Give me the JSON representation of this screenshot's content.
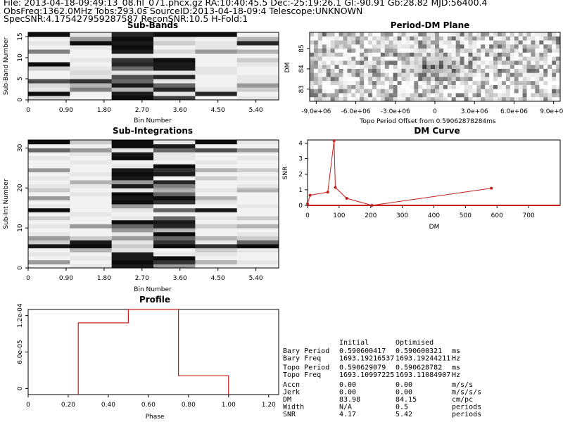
{
  "header": {
    "line1": "File: 2013-04-18-09:49:13_08.fil_071.phcx.gz   RA:10:40:45.5   Dec:-25:19:26.1   Gl:-90.91   Gb:28.82   MJD:56400.4",
    "line2": "ObsFreq:1362.0MHz    Tobs:293.0s    SourceID:2013-04-18-09:4    Telescope:UNKNOWN",
    "line3": "SpecSNR:4.175427959287587    ReconSNR:10.5    H-Fold:1"
  },
  "colors": {
    "curve": "#c41e1e",
    "axes": "#000000"
  },
  "chart_data": [
    {
      "id": "subbands",
      "type": "heatmap",
      "title": "Sub-Bands",
      "xlabel": "Bin Number",
      "ylabel": "Sub-Band Number",
      "xlim": [
        0,
        6
      ],
      "ylim": [
        0,
        16
      ],
      "xticks": [
        "0",
        "0.90",
        "1.80",
        "2.70",
        "3.60",
        "4.50",
        "5.40"
      ],
      "yticks": [
        "0",
        "5",
        "10",
        "15"
      ],
      "values": [
        [
          0.15,
          0.05,
          0.95,
          0.75,
          0.05,
          0.1
        ],
        [
          0.95,
          0.05,
          0.9,
          0.1,
          0.85,
          0.05
        ],
        [
          0.1,
          0.5,
          0.3,
          0.85,
          0.1,
          0.2
        ],
        [
          0.15,
          0.3,
          0.9,
          0.6,
          0.05,
          0.4
        ],
        [
          0.7,
          0.8,
          0.6,
          0.1,
          0.05,
          0.1
        ],
        [
          0.05,
          0.1,
          0.7,
          0.85,
          0.05,
          0.1
        ],
        [
          0.05,
          0.15,
          0.1,
          0.1,
          0.1,
          0.05
        ],
        [
          0.2,
          0.1,
          0.6,
          0.9,
          0.1,
          0.05
        ],
        [
          0.95,
          0.05,
          0.85,
          0.9,
          0.05,
          0.1
        ],
        [
          0.05,
          0.1,
          0.8,
          0.95,
          0.05,
          0.2
        ],
        [
          0.05,
          0.05,
          0.1,
          0.05,
          0.05,
          0.05
        ],
        [
          0.5,
          0.05,
          0.9,
          0.15,
          0.4,
          0.3
        ],
        [
          0.05,
          0.1,
          0.95,
          0.05,
          0.1,
          0.05
        ],
        [
          0.1,
          0.95,
          0.9,
          0.2,
          0.1,
          0.85
        ],
        [
          0.05,
          0.4,
          0.95,
          0.1,
          0.05,
          0.3
        ],
        [
          0.95,
          0.1,
          0.85,
          0.95,
          0.95,
          0.05
        ]
      ]
    },
    {
      "id": "subints",
      "type": "heatmap",
      "title": "Sub-Integrations",
      "xlabel": "Bin Number",
      "ylabel": "Sub-Int Number",
      "xlim": [
        0,
        6
      ],
      "ylim": [
        0,
        32
      ],
      "xticks": [
        "0",
        "0.90",
        "1.80",
        "2.70",
        "3.60",
        "4.50",
        "5.40"
      ],
      "yticks": [
        "0",
        "10",
        "20",
        "30"
      ],
      "values": [
        [
          0.05,
          0.1,
          0.9,
          0.4,
          0.05,
          0.05
        ],
        [
          0.4,
          0.05,
          0.95,
          0.8,
          0.3,
          0.1
        ],
        [
          0.05,
          0.1,
          0.9,
          0.95,
          0.05,
          0.05
        ],
        [
          0.1,
          0.05,
          0.9,
          0.1,
          0.1,
          0.05
        ],
        [
          0.05,
          0.3,
          0.1,
          0.05,
          0.2,
          0.1
        ],
        [
          0.9,
          0.95,
          0.2,
          0.95,
          0.8,
          0.95
        ],
        [
          0.2,
          0.9,
          0.1,
          0.8,
          0.1,
          0.6
        ],
        [
          0.4,
          0.2,
          0.4,
          0.6,
          0.3,
          0.2
        ],
        [
          0.1,
          0.05,
          0.1,
          0.95,
          0.05,
          0.1
        ],
        [
          0.05,
          0.05,
          0.4,
          0.3,
          0.05,
          0.05
        ],
        [
          0.1,
          0.4,
          0.6,
          0.85,
          0.2,
          0.3
        ],
        [
          0.05,
          0.05,
          0.95,
          0.9,
          0.05,
          0.05
        ],
        [
          0.2,
          0.05,
          0.1,
          0.6,
          0.1,
          0.2
        ],
        [
          0.05,
          0.1,
          0.05,
          0.05,
          0.05,
          0.05
        ],
        [
          0.95,
          0.05,
          0.1,
          0.6,
          0.9,
          0.05
        ],
        [
          0.1,
          0.05,
          0.4,
          0.05,
          0.05,
          0.1
        ],
        [
          0.05,
          0.05,
          0.95,
          0.8,
          0.1,
          0.05
        ],
        [
          0.4,
          0.05,
          0.9,
          0.95,
          0.3,
          0.05
        ],
        [
          0.05,
          0.1,
          0.95,
          0.6,
          0.05,
          0.05
        ],
        [
          0.2,
          0.05,
          0.1,
          0.3,
          0.1,
          0.3
        ],
        [
          0.1,
          0.1,
          0.9,
          0.5,
          0.05,
          0.1
        ],
        [
          0.05,
          0.3,
          0.4,
          0.85,
          0.05,
          0.05
        ],
        [
          0.1,
          0.05,
          0.9,
          0.05,
          0.2,
          0.1
        ],
        [
          0.05,
          0.1,
          0.95,
          0.9,
          0.05,
          0.05
        ],
        [
          0.4,
          0.05,
          0.9,
          0.8,
          0.3,
          0.2
        ],
        [
          0.05,
          0.05,
          0.1,
          0.95,
          0.05,
          0.05
        ],
        [
          0.05,
          0.1,
          0.05,
          0.05,
          0.1,
          0.05
        ],
        [
          0.1,
          0.05,
          0.95,
          0.1,
          0.05,
          0.1
        ],
        [
          0.05,
          0.1,
          0.9,
          0.1,
          0.05,
          0.05
        ],
        [
          0.6,
          0.4,
          0.1,
          0.6,
          0.7,
          0.4
        ],
        [
          0.05,
          0.05,
          0.95,
          0.9,
          0.05,
          0.05
        ],
        [
          0.95,
          0.2,
          0.95,
          0.1,
          0.95,
          0.1
        ]
      ]
    },
    {
      "id": "pdm",
      "type": "heatmap",
      "title": "Period-DM Plane",
      "xlabel": "Topo Period Offset from 0.59062878284ms",
      "ylabel": "DM",
      "xlim": [
        -9500000.0,
        9500000.0
      ],
      "ylim": [
        82.4,
        85.8
      ],
      "xticks": [
        "-9.0e+06",
        "-6.0e+06",
        "-3.0e+06",
        "0",
        "3.0e+06",
        "6.0e+06",
        "9.0e+06"
      ],
      "xtick_values": [
        -9000000.0,
        -6000000.0,
        -3000000.0,
        0,
        3000000.0,
        6000000.0,
        9000000.0
      ],
      "yticks": [
        "83",
        "84",
        "85"
      ],
      "ytick_values": [
        83,
        84,
        85
      ]
    },
    {
      "id": "dmcurve",
      "type": "line",
      "title": "DM Curve",
      "xlabel": "DM",
      "ylabel": "SNR",
      "xlim": [
        0,
        800
      ],
      "ylim": [
        0,
        4.2
      ],
      "xticks": [
        "0",
        "100",
        "200",
        "300",
        "400",
        "500",
        "600",
        "700"
      ],
      "xtick_values": [
        0,
        100,
        200,
        300,
        400,
        500,
        600,
        700
      ],
      "yticks": [
        "0",
        "1",
        "2",
        "3",
        "4"
      ],
      "ytick_values": [
        0,
        1,
        2,
        3,
        4
      ],
      "x": [
        0,
        8,
        64,
        84,
        88,
        124,
        204,
        582
      ],
      "y": [
        0.1,
        0.65,
        0.85,
        4.15,
        1.15,
        0.45,
        0.0,
        1.1
      ]
    },
    {
      "id": "profile",
      "type": "line",
      "title": "Profile",
      "xlabel": "Phase",
      "ylabel": "",
      "xlim": [
        0,
        1.25
      ],
      "ylim": [
        -1e-05,
        0.00013
      ],
      "xticks": [
        "0",
        "0.20",
        "0.40",
        "0.60",
        "0.80",
        "1.00",
        "1.20"
      ],
      "xtick_values": [
        0,
        0.2,
        0.4,
        0.6,
        0.8,
        1.0,
        1.2
      ],
      "yticks": [
        "0",
        "6.0e-05",
        "1.2e-04"
      ],
      "ytick_values": [
        0,
        6e-05,
        0.00012
      ],
      "x": [
        0.25,
        0.25,
        0.5,
        0.5,
        0.75,
        0.75,
        1.0,
        1.0
      ],
      "y": [
        -1e-05,
        0.000108,
        0.000108,
        0.00014,
        0.00014,
        2.1e-05,
        2.1e-05,
        -1e-05
      ]
    }
  ],
  "stats": {
    "header_initial": "Initial",
    "header_optimised": "Optimised",
    "rows": [
      {
        "label": "Bary Period",
        "initial": "0.590600417",
        "optimised": "0.590600321",
        "unit": "ms"
      },
      {
        "label": "Bary Freq",
        "initial": "1693.19216537",
        "optimised": "1693.19244211",
        "unit": "Hz"
      },
      {
        "label": "Topo Period",
        "initial": "0.590629079",
        "optimised": "0.590628782",
        "unit": "ms"
      },
      {
        "label": "Topo Freq",
        "initial": "1693.10997225",
        "optimised": "1693.11084907",
        "unit": "Hz"
      },
      {
        "label": "Accn",
        "initial": "0.00",
        "optimised": "0.00",
        "unit": "m/s/s"
      },
      {
        "label": "Jerk",
        "initial": "0.00",
        "optimised": "0.00",
        "unit": "m/s/s/s"
      },
      {
        "label": "DM",
        "initial": "83.98",
        "optimised": "84.15",
        "unit": "cm/pc"
      },
      {
        "label": "Width",
        "initial": "N/A",
        "optimised": "0.5",
        "unit": "periods"
      },
      {
        "label": "SNR",
        "initial": "4.17",
        "optimised": "5.42",
        "unit": "periods"
      }
    ]
  }
}
